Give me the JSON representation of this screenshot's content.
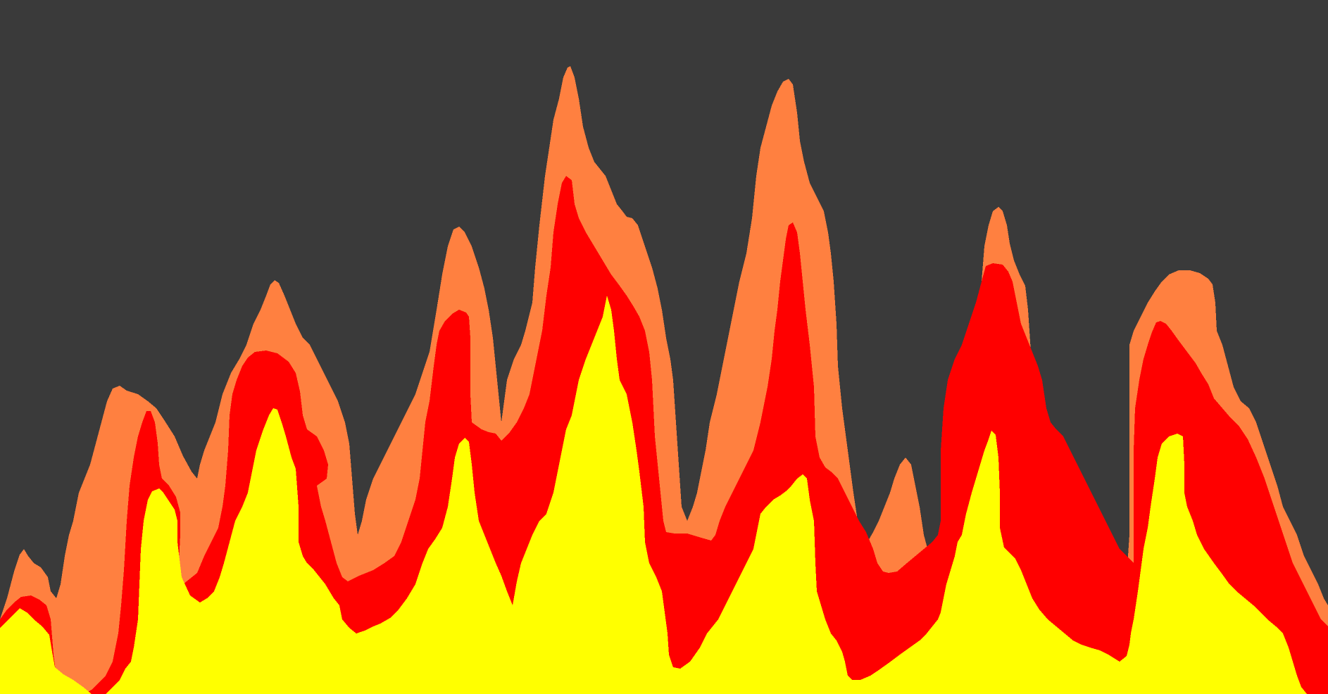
{
  "scene": {
    "background_color": "#3a3a3a",
    "layers": [
      {
        "name": "outer-flame",
        "color": "#ff8040"
      },
      {
        "name": "middle-flame",
        "color": "#ff0000"
      },
      {
        "name": "inner-flame",
        "color": "#ffff00"
      }
    ]
  }
}
